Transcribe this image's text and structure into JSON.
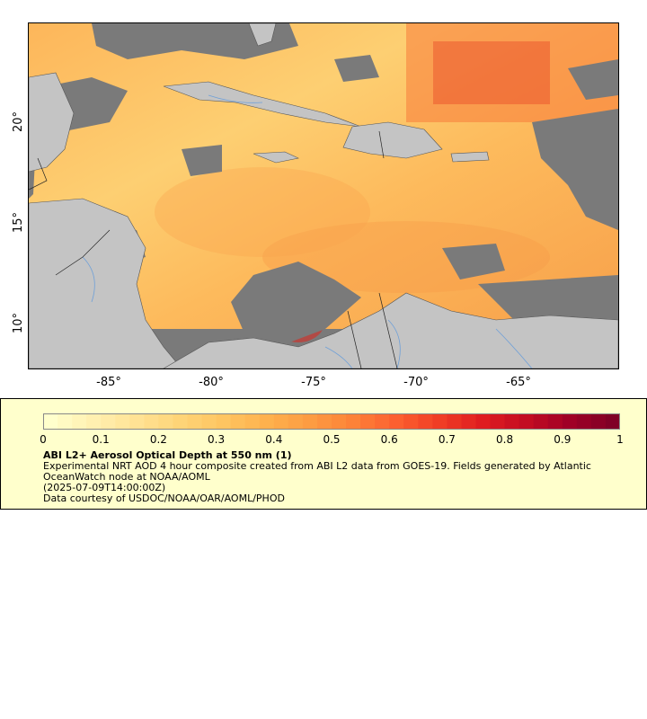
{
  "map": {
    "x_ticks": [
      "-85°",
      "-80°",
      "-75°",
      "-70°",
      "-65°"
    ],
    "y_ticks": [
      "20°",
      "15°",
      "10°"
    ],
    "land_color": "#c4c4c4",
    "nodata_color": "#7a7a7a",
    "river_color": "#6fa0d8"
  },
  "colorbar": {
    "colors": [
      "#ffffcc",
      "#fff0b0",
      "#ffe294",
      "#fed477",
      "#fec561",
      "#feb14d",
      "#fd9c42",
      "#fd8238",
      "#fc5f30",
      "#f03d25",
      "#df1c20",
      "#c30c22",
      "#a00026",
      "#800026"
    ],
    "tick_labels": [
      "0",
      "0.1",
      "0.2",
      "0.3",
      "0.4",
      "0.5",
      "0.6",
      "0.7",
      "0.8",
      "0.9",
      "1"
    ]
  },
  "legend": {
    "title": "ABI L2+ Aerosol Optical Depth at 550 nm (1)",
    "line1": "Experimental NRT AOD 4 hour composite created from ABI L2 data from GOES-19. Fields generated by Atlantic OceanWatch node at NOAA/AOML",
    "line2": "(2025-07-09T14:00:00Z)",
    "line3": "Data courtesy of USDOC/NOAA/OAR/AOML/PHOD"
  }
}
